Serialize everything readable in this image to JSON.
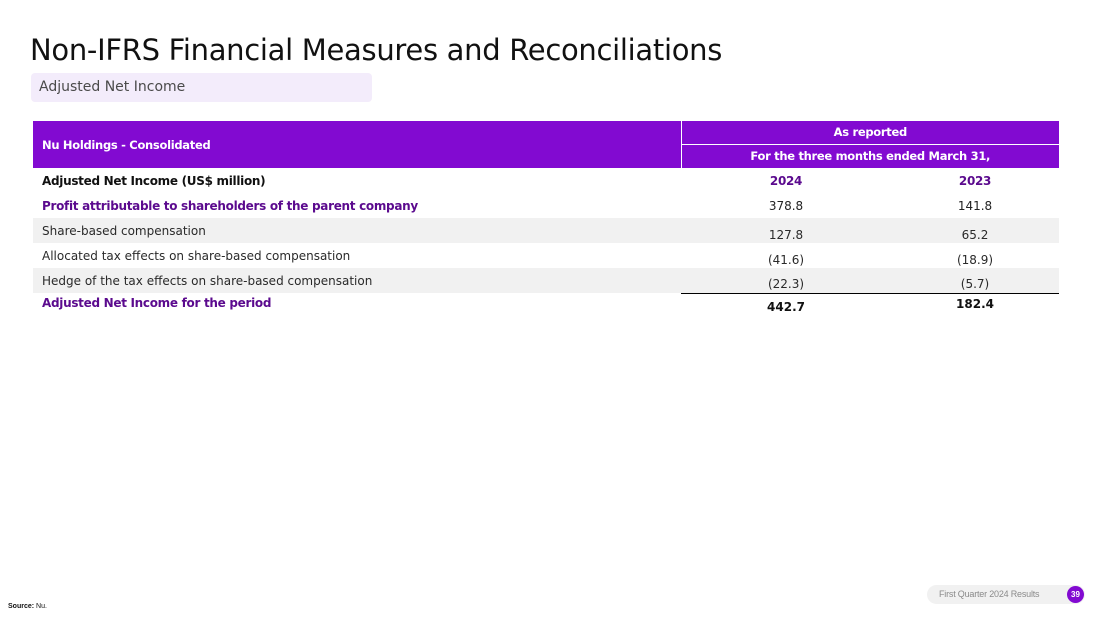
{
  "slide": {
    "title": "Non-IFRS Financial Measures and Reconciliations",
    "subtitle": "Adjusted Net Income"
  },
  "table": {
    "entity_header": "Nu Holdings - Consolidated",
    "group_header": "As reported",
    "period_header": "For the three months ended March 31,",
    "section_label": "Adjusted Net Income (US$ million)",
    "years": [
      "2024",
      "2023"
    ],
    "rows": [
      {
        "label": "Profit attributable to shareholders of the parent company",
        "v2024": "378.8",
        "v2023": "141.8"
      },
      {
        "label": "Share-based compensation",
        "v2024": "127.8",
        "v2023": "65.2"
      },
      {
        "label": "Allocated tax effects on share-based compensation",
        "v2024": "(41.6)",
        "v2023": "(18.9)"
      },
      {
        "label": "Hedge of the tax effects on share-based compensation",
        "v2024": "(22.3)",
        "v2023": "(5.7)"
      }
    ],
    "total": {
      "label": "Adjusted Net Income for the period",
      "v2024": "442.7",
      "v2023": "182.4"
    }
  },
  "footer": {
    "source_label": "Source:",
    "source_value": "Nu.",
    "report_name": "First Quarter 2024 Results",
    "page_number": "39"
  },
  "colors": {
    "brand_purple": "#820ad1",
    "label_purple": "#5b0a8e",
    "row_shade": "#f1f1f1",
    "subtitle_bg": "#f3ecfb"
  }
}
